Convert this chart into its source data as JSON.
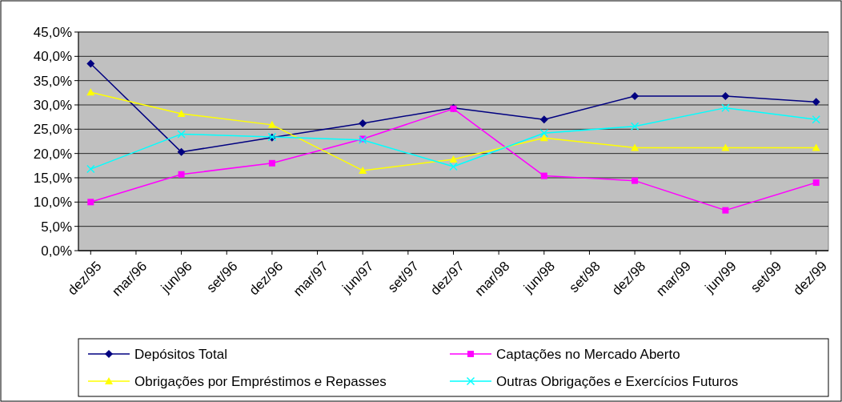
{
  "chart_data": {
    "type": "line",
    "categories": [
      "dez/95",
      "mar/96",
      "jun/96",
      "set/96",
      "dez/96",
      "mar/97",
      "jun/97",
      "set/97",
      "dez/97",
      "mar/98",
      "jun/98",
      "set/98",
      "dez/98",
      "mar/99",
      "jun/99",
      "set/99",
      "dez/99"
    ],
    "series": [
      {
        "name": "Depósitos Total",
        "color": "#000080",
        "marker": "diamond",
        "values": [
          38.5,
          null,
          20.3,
          null,
          23.3,
          null,
          26.2,
          null,
          29.4,
          null,
          27.0,
          null,
          31.8,
          null,
          31.8,
          null,
          30.6
        ]
      },
      {
        "name": "Captações no Mercado Aberto",
        "color": "#ff00ff",
        "marker": "square",
        "values": [
          10.0,
          null,
          15.7,
          null,
          18.0,
          null,
          23.0,
          null,
          29.2,
          null,
          15.4,
          null,
          14.4,
          null,
          8.3,
          null,
          14.0
        ]
      },
      {
        "name": "Obrigações por Empréstimos e Repasses",
        "color": "#ffff00",
        "marker": "triangle",
        "values": [
          32.6,
          null,
          28.2,
          null,
          25.9,
          null,
          16.5,
          null,
          18.8,
          null,
          23.2,
          null,
          21.2,
          null,
          21.2,
          null,
          21.2
        ]
      },
      {
        "name": "Outras Obrigações e Exercícios Futuros",
        "color": "#00ffff",
        "marker": "cross",
        "values": [
          16.8,
          null,
          24.0,
          null,
          23.4,
          null,
          22.8,
          null,
          17.3,
          null,
          24.2,
          null,
          25.6,
          null,
          29.4,
          null,
          27.0
        ]
      }
    ],
    "ylim": [
      0,
      45
    ],
    "yticks": [
      {
        "value": 0,
        "label": "0,0%"
      },
      {
        "value": 5,
        "label": "5,0%"
      },
      {
        "value": 10,
        "label": "10,0%"
      },
      {
        "value": 15,
        "label": "15,0%"
      },
      {
        "value": 20,
        "label": "20,0%"
      },
      {
        "value": 25,
        "label": "25,0%"
      },
      {
        "value": 30,
        "label": "30,0%"
      },
      {
        "value": 35,
        "label": "35,0%"
      },
      {
        "value": 40,
        "label": "40,0%"
      },
      {
        "value": 45,
        "label": "45,0%"
      }
    ],
    "grid": "y",
    "legend": "bottom"
  }
}
